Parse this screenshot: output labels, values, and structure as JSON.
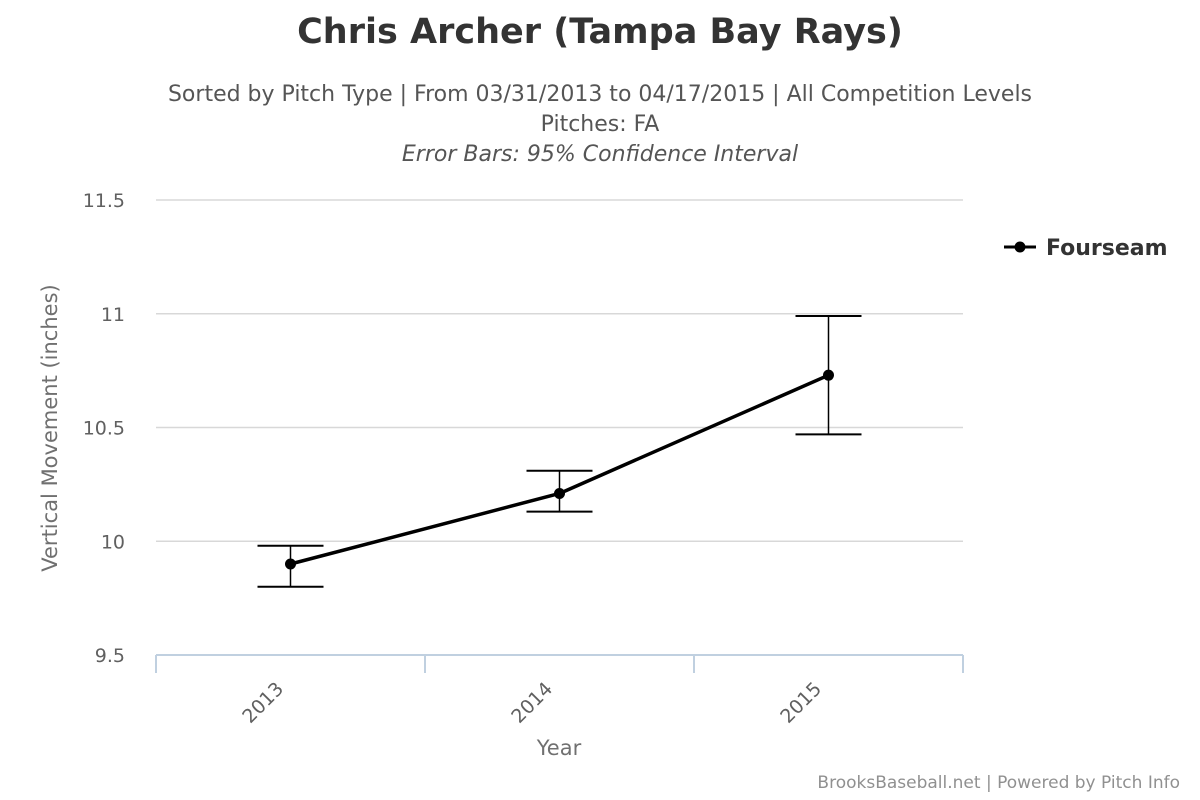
{
  "chart_data": {
    "type": "line",
    "title": "Chris Archer (Tampa Bay Rays)",
    "subtitle": "Sorted by Pitch Type | From 03/31/2013 to 04/17/2015 | All Competition Levels",
    "pitches_line": "Pitches: FA",
    "error_bar_note": "Error Bars: 95% Confidence Interval",
    "xlabel": "Year",
    "ylabel": "Vertical Movement (inches)",
    "categories": [
      "2013",
      "2014",
      "2015"
    ],
    "y_ticks": [
      "9.5",
      "10",
      "10.5",
      "11",
      "11.5"
    ],
    "ylim": [
      9.5,
      11.5
    ],
    "grid": true,
    "legend_position": "right",
    "series": [
      {
        "name": "Fourseam",
        "color": "#000000",
        "values": [
          9.9,
          10.21,
          10.73
        ],
        "error_low": [
          9.8,
          10.13,
          10.47
        ],
        "error_high": [
          9.98,
          10.31,
          10.99
        ]
      }
    ]
  },
  "credits": "BrooksBaseball.net | Powered by Pitch Info"
}
